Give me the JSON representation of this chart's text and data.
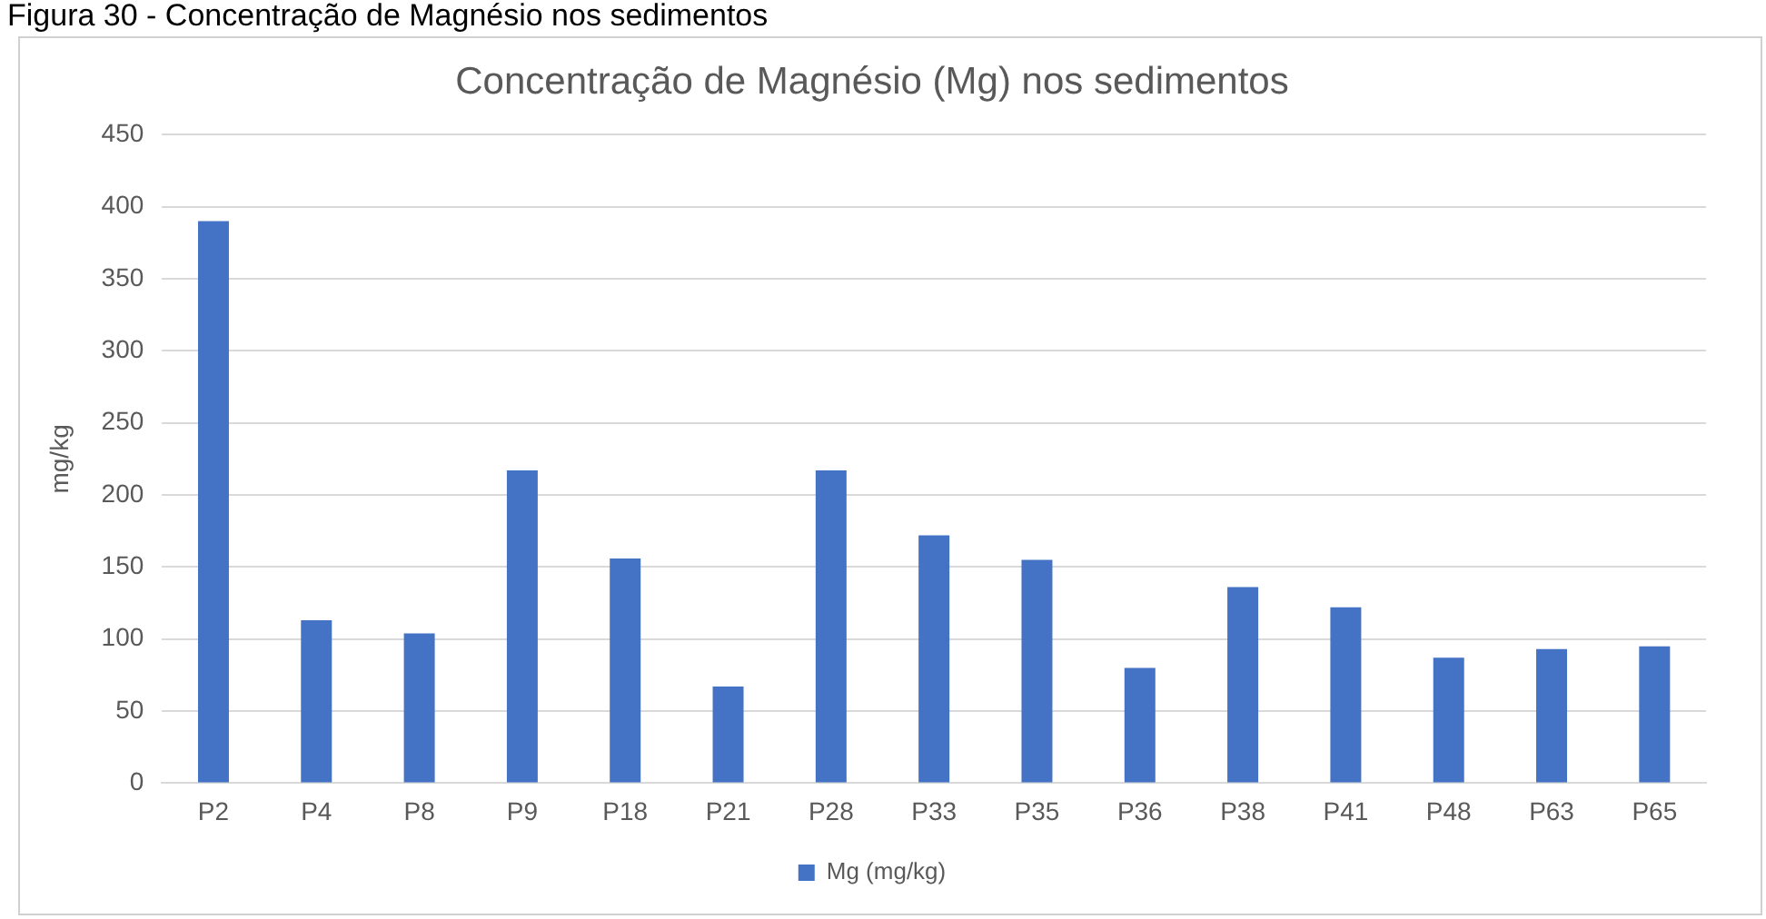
{
  "chart_data": {
    "type": "bar",
    "title": "Concentração de Magnésio (Mg) nos sedimentos",
    "ylabel": "mg/kg",
    "annotations": [
      "Figura 30 - Concentração de Magnésio nos sedimentos"
    ],
    "categories": [
      "P2",
      "P4",
      "P8",
      "P9",
      "P18",
      "P21",
      "P28",
      "P33",
      "P35",
      "P36",
      "P38",
      "P41",
      "P48",
      "P63",
      "P65"
    ],
    "series": [
      {
        "name": "Mg (mg/kg)",
        "color": "#4472c4",
        "values": [
          390,
          113,
          104,
          217,
          156,
          67,
          217,
          172,
          155,
          80,
          136,
          122,
          87,
          93,
          95
        ]
      }
    ],
    "ylim": [
      0,
      450
    ],
    "yticks": [
      0,
      50,
      100,
      150,
      200,
      250,
      300,
      350,
      400,
      450
    ],
    "grid": "y",
    "legend": "bottom"
  }
}
